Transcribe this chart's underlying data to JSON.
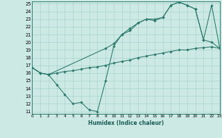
{
  "xlabel": "Humidex (Indice chaleur)",
  "background_color": "#cce9e4",
  "grid_color": "#aad4ce",
  "line_color": "#2d7a6e",
  "ylim": [
    11,
    25
  ],
  "xlim": [
    0,
    23
  ],
  "yticks": [
    11,
    12,
    13,
    14,
    15,
    16,
    17,
    18,
    19,
    20,
    21,
    22,
    23,
    24,
    25
  ],
  "xticks": [
    0,
    1,
    2,
    3,
    4,
    5,
    6,
    7,
    8,
    9,
    10,
    11,
    12,
    13,
    14,
    15,
    16,
    17,
    18,
    19,
    20,
    21,
    22,
    23
  ],
  "series1_x": [
    0,
    1,
    2,
    3,
    4,
    5,
    6,
    7,
    8,
    9,
    10,
    11,
    12,
    13,
    14,
    15,
    16,
    17,
    18,
    19,
    20,
    21,
    22,
    23
  ],
  "series1_y": [
    16.7,
    16.0,
    15.8,
    14.5,
    13.2,
    12.0,
    12.2,
    11.2,
    11.0,
    15.0,
    19.5,
    21.0,
    21.5,
    22.5,
    23.0,
    23.0,
    23.2,
    24.8,
    25.2,
    24.8,
    24.3,
    20.3,
    20.0,
    19.2
  ],
  "series2_x": [
    0,
    1,
    2,
    3,
    4,
    5,
    6,
    7,
    8,
    9,
    10,
    11,
    12,
    13,
    14,
    15,
    16,
    17,
    18,
    19,
    20,
    21,
    22,
    23
  ],
  "series2_y": [
    16.7,
    16.0,
    15.8,
    16.0,
    16.2,
    16.3,
    16.5,
    16.7,
    16.8,
    17.0,
    17.3,
    17.5,
    17.7,
    18.0,
    18.2,
    18.4,
    18.6,
    18.8,
    19.0,
    19.0,
    19.2,
    19.3,
    19.4,
    19.2
  ],
  "series3_x": [
    0,
    1,
    2,
    9,
    10,
    11,
    12,
    13,
    14,
    15,
    16,
    17,
    18,
    19,
    20,
    21,
    22,
    23
  ],
  "series3_y": [
    16.7,
    16.0,
    15.8,
    19.2,
    19.8,
    21.0,
    21.8,
    22.5,
    23.0,
    22.8,
    23.2,
    24.8,
    25.2,
    24.8,
    24.3,
    20.3,
    24.8,
    19.2
  ]
}
